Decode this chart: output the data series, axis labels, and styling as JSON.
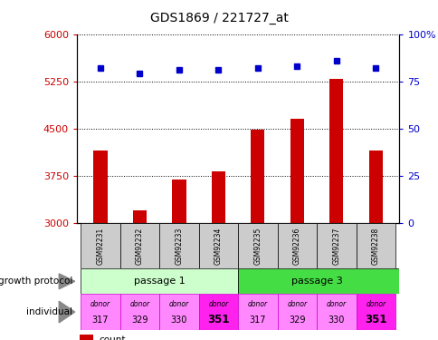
{
  "title": "GDS1869 / 221727_at",
  "samples": [
    "GSM92231",
    "GSM92232",
    "GSM92233",
    "GSM92234",
    "GSM92235",
    "GSM92236",
    "GSM92237",
    "GSM92238"
  ],
  "count_values": [
    4150,
    3200,
    3680,
    3820,
    4480,
    4650,
    5280,
    4150
  ],
  "percentile_values": [
    82,
    79,
    81,
    81,
    82,
    83,
    86,
    82
  ],
  "ylim_left": [
    3000,
    6000
  ],
  "ylim_right": [
    0,
    100
  ],
  "yticks_left": [
    3000,
    3750,
    4500,
    5250,
    6000
  ],
  "yticks_right": [
    0,
    25,
    50,
    75,
    100
  ],
  "bar_color": "#CC0000",
  "dot_color": "#0000CC",
  "bar_width": 0.35,
  "passage1_color": "#CCFFCC",
  "passage3_color": "#44DD44",
  "donor_colors_light": "#FF88FF",
  "donor_colors_dark": "#FF22EE",
  "donor_bold_idx": [
    3,
    7
  ],
  "donor_numbers": [
    "317",
    "329",
    "330",
    "351",
    "317",
    "329",
    "330",
    "351"
  ],
  "passage_labels": [
    "passage 1",
    "passage 3"
  ],
  "left_label_color": "#CC0000",
  "right_label_color": "#0000CC",
  "x_positions": [
    0,
    1,
    2,
    3,
    4,
    5,
    6,
    7
  ],
  "sample_box_color": "#CCCCCC",
  "legend_bar_color": "#CC0000",
  "legend_dot_color": "#0000CC"
}
